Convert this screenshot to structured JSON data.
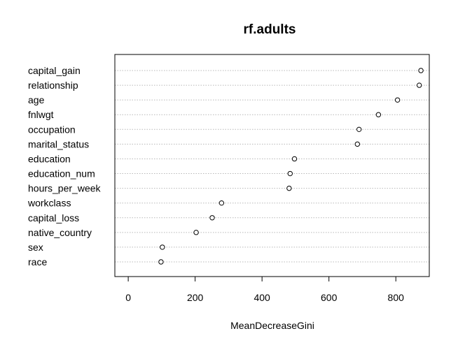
{
  "chart_data": {
    "type": "scatter",
    "subtype": "dotchart",
    "title": "rf.adults",
    "xlabel": "MeanDecreaseGini",
    "ylabel": "",
    "xlim": [
      -40,
      900
    ],
    "xticks": [
      0,
      200,
      400,
      600,
      800
    ],
    "grid": "horizontal dotted",
    "legend": "none",
    "categories": [
      "capital_gain",
      "relationship",
      "age",
      "fnlwgt",
      "occupation",
      "marital_status",
      "education",
      "education_num",
      "hours_per_week",
      "workclass",
      "capital_loss",
      "native_country",
      "sex",
      "race"
    ],
    "values": [
      875,
      870,
      805,
      748,
      690,
      685,
      497,
      484,
      481,
      279,
      251,
      203,
      102,
      98
    ]
  }
}
